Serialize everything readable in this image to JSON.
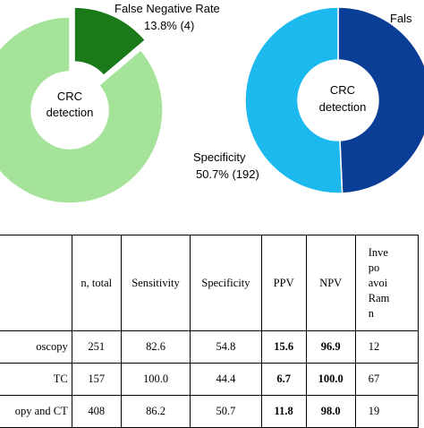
{
  "chart_data": [
    {
      "type": "pie",
      "center_label": [
        "CRC",
        "detection"
      ],
      "slices": [
        {
          "label": "False Negative Rate",
          "percent_label": "13.8% (4)",
          "value": 13.8,
          "color": "#1a7a1a",
          "exploded": true
        },
        {
          "label": "",
          "percent_label": "",
          "value": 86.2,
          "color": "#a6e39a",
          "exploded": false
        }
      ]
    },
    {
      "type": "pie",
      "center_label": [
        "CRC",
        "detection"
      ],
      "slices": [
        {
          "label": "Fals",
          "percent_label": "",
          "value": 49.3,
          "color": "#0a3d96"
        },
        {
          "label": "Specificity",
          "percent_label": "50.7% (192)",
          "value": 50.7,
          "color": "#1cb9ef"
        }
      ]
    }
  ],
  "table": {
    "headers": [
      "",
      "n, total",
      "Sensitivity",
      "Specificity",
      "PPV",
      "NPV",
      [
        "Inve",
        "po",
        "avoi",
        "Ram",
        "n"
      ]
    ],
    "rows": [
      [
        "oscopy",
        "251",
        "82.6",
        "54.8",
        "15.6",
        "96.9",
        "12"
      ],
      [
        "TC",
        "157",
        "100.0",
        "44.4",
        "6.7",
        "100.0",
        "67"
      ],
      [
        "opy and CT",
        "408",
        "86.2",
        "50.7",
        "11.8",
        "98.0",
        "19"
      ]
    ]
  }
}
